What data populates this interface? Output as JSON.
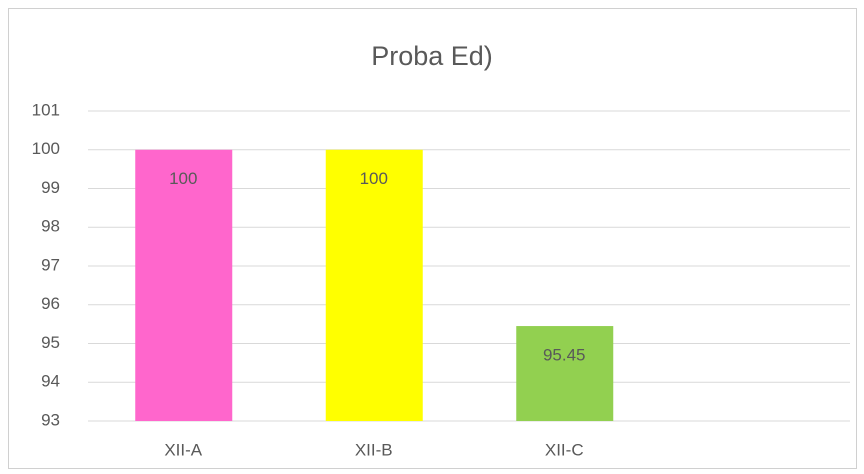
{
  "chart_data": {
    "type": "bar",
    "title": "Proba Ed)",
    "categories": [
      "XII-A",
      "XII-B",
      "XII-C",
      null
    ],
    "values": [
      100,
      100,
      95.45,
      null
    ],
    "colors": [
      "#ff66cc",
      "#ffff00",
      "#92d050",
      null
    ],
    "ylim": [
      93,
      101
    ],
    "yticks": [
      93,
      94,
      95,
      96,
      97,
      98,
      99,
      100,
      101
    ],
    "grid": true
  }
}
